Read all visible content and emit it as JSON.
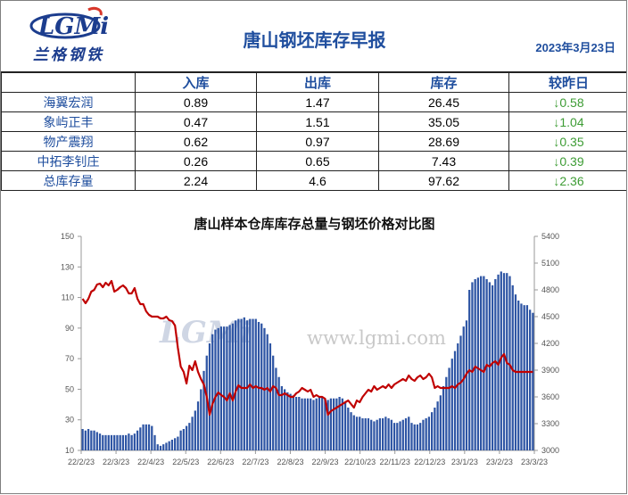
{
  "header": {
    "logo_text": "兰格钢铁",
    "logo_mark": "LGMi",
    "title": "唐山钢坯库存早报",
    "date": "2023年3月23日"
  },
  "table": {
    "columns": [
      "",
      "入库",
      "出库",
      "库存",
      "较昨日"
    ],
    "rows": [
      {
        "name": "海翼宏润",
        "in": "0.89",
        "out": "1.47",
        "stock": "26.45",
        "change": "↓0.58"
      },
      {
        "name": "象屿正丰",
        "in": "0.47",
        "out": "1.51",
        "stock": "35.05",
        "change": "↓1.04"
      },
      {
        "name": "物产震翔",
        "in": "0.62",
        "out": "0.97",
        "stock": "28.69",
        "change": "↓0.35"
      },
      {
        "name": "中拓李钊庄",
        "in": "0.26",
        "out": "0.65",
        "stock": "7.43",
        "change": "↓0.39"
      },
      {
        "name": "总库存量",
        "in": "2.24",
        "out": "4.6",
        "stock": "97.62",
        "change": "↓2.36"
      }
    ]
  },
  "colors": {
    "bar": "#2e55a4",
    "line": "#c00000",
    "header_text": "#1f4e9e",
    "change_text": "#3d9c34"
  },
  "watermark": {
    "text": "www.lgmi.com",
    "mark": "LGMi"
  },
  "chart_data": {
    "type": "bar",
    "title": "唐山样本仓库库存总量与钢坯价格对比图",
    "x_ticks": [
      "22/2/23",
      "22/3/23",
      "22/4/23",
      "22/5/23",
      "22/6/23",
      "22/7/23",
      "22/8/23",
      "22/9/23",
      "22/10/23",
      "22/11/23",
      "22/12/23",
      "23/1/23",
      "23/2/23",
      "23/3/23"
    ],
    "y_left": {
      "min": 10,
      "max": 150,
      "ticks": [
        10,
        30,
        50,
        70,
        90,
        110,
        130,
        150
      ]
    },
    "y_right": {
      "min": 3000,
      "max": 5400,
      "ticks": [
        3000,
        3300,
        3600,
        3900,
        4200,
        4500,
        4800,
        5100,
        5400
      ]
    },
    "series": [
      {
        "type": "bar",
        "axis": "left",
        "values": [
          24,
          23,
          24,
          23,
          23,
          22,
          21,
          20,
          20,
          20,
          20,
          20,
          20,
          20,
          20,
          20,
          21,
          20,
          21,
          23,
          25,
          27,
          27,
          27,
          26,
          20,
          14,
          13,
          14,
          15,
          16,
          17,
          18,
          19,
          23,
          24,
          26,
          28,
          32,
          36,
          42,
          50,
          62,
          72,
          80,
          86,
          89,
          90,
          91,
          91,
          91,
          92,
          93,
          95,
          96,
          96,
          97,
          95,
          96,
          96,
          96,
          94,
          93,
          90,
          86,
          80,
          72,
          64,
          58,
          52,
          50,
          48,
          47,
          46,
          45,
          45,
          44,
          44,
          44,
          44,
          43,
          44,
          45,
          45,
          44,
          43,
          44,
          44,
          44,
          45,
          44,
          42,
          38,
          35,
          33,
          32,
          32,
          31,
          31,
          31,
          30,
          29,
          30,
          31,
          31,
          32,
          31,
          30,
          28,
          28,
          29,
          30,
          31,
          32,
          28,
          27,
          27,
          28,
          30,
          31,
          32,
          35,
          38,
          42,
          46,
          52,
          58,
          64,
          70,
          75,
          80,
          85,
          91,
          95,
          115,
          120,
          122,
          123,
          124,
          124,
          122,
          120,
          118,
          122,
          125,
          127,
          126,
          126,
          124,
          118,
          112,
          108,
          106,
          105,
          105,
          102,
          100
        ]
      },
      {
        "type": "line",
        "axis": "right",
        "values": [
          4700,
          4650,
          4700,
          4780,
          4800,
          4860,
          4870,
          4830,
          4880,
          4850,
          4900,
          4780,
          4800,
          4830,
          4850,
          4820,
          4760,
          4760,
          4820,
          4700,
          4640,
          4640,
          4560,
          4520,
          4500,
          4500,
          4500,
          4480,
          4480,
          4500,
          4460,
          4450,
          4400,
          4150,
          3940,
          3880,
          3750,
          3950,
          3900,
          4000,
          3880,
          3800,
          3740,
          3600,
          3400,
          3520,
          3600,
          3650,
          3620,
          3600,
          3560,
          3640,
          3560,
          3660,
          3730,
          3700,
          3700,
          3700,
          3740,
          3700,
          3720,
          3700,
          3700,
          3680,
          3700,
          3660,
          3720,
          3700,
          3620,
          3620,
          3640,
          3620,
          3600,
          3600,
          3640,
          3660,
          3700,
          3680,
          3660,
          3680,
          3600,
          3620,
          3600,
          3600,
          3580,
          3400,
          3440,
          3460,
          3480,
          3500,
          3520,
          3540,
          3560,
          3520,
          3480,
          3560,
          3540,
          3600,
          3640,
          3680,
          3660,
          3720,
          3680,
          3700,
          3720,
          3700,
          3740,
          3700,
          3740,
          3760,
          3780,
          3800,
          3780,
          3840,
          3800,
          3780,
          3820,
          3840,
          3800,
          3820,
          3860,
          3820,
          3700,
          3720,
          3700,
          3700,
          3700,
          3700,
          3720,
          3700,
          3740,
          3760,
          3800,
          3860,
          3900,
          3880,
          3940,
          3920,
          3900,
          3880,
          3960,
          3940,
          3980,
          4000,
          3960,
          4040,
          4080,
          3980,
          3960,
          3900,
          3880,
          3880,
          3880,
          3880,
          3880,
          3880,
          3880
        ]
      }
    ]
  }
}
